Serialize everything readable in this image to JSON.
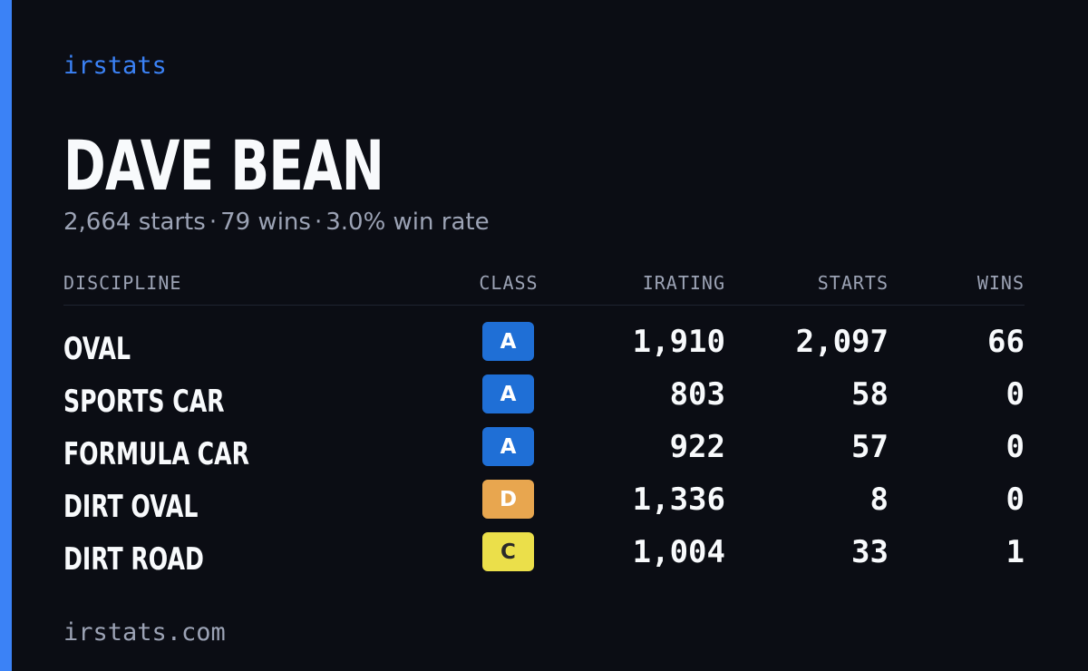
{
  "brand": "irstats",
  "driver": {
    "name": "DAVE BEAN",
    "starts_text": "2,664 starts",
    "wins_text": "79 wins",
    "win_rate_text": "3.0% win rate",
    "separator": "·"
  },
  "table": {
    "headers": {
      "discipline": "DISCIPLINE",
      "class": "CLASS",
      "irating": "IRATING",
      "starts": "STARTS",
      "wins": "WINS"
    },
    "rows": [
      {
        "discipline": "OVAL",
        "class": "A",
        "class_color": "#1f6fd6",
        "class_text_color": "#ffffff",
        "irating": "1,910",
        "starts": "2,097",
        "wins": "66"
      },
      {
        "discipline": "SPORTS CAR",
        "class": "A",
        "class_color": "#1f6fd6",
        "class_text_color": "#ffffff",
        "irating": "803",
        "starts": "58",
        "wins": "0"
      },
      {
        "discipline": "FORMULA CAR",
        "class": "A",
        "class_color": "#1f6fd6",
        "class_text_color": "#ffffff",
        "irating": "922",
        "starts": "57",
        "wins": "0"
      },
      {
        "discipline": "DIRT OVAL",
        "class": "D",
        "class_color": "#e8a64f",
        "class_text_color": "#ffffff",
        "irating": "1,336",
        "starts": "8",
        "wins": "0"
      },
      {
        "discipline": "DIRT ROAD",
        "class": "C",
        "class_color": "#ebdf4a",
        "class_text_color": "#2a2a2a",
        "irating": "1,004",
        "starts": "33",
        "wins": "1"
      }
    ]
  },
  "footer": "irstats.com",
  "colors": {
    "background": "#0b0d14",
    "accent": "#3b82f6",
    "muted_text": "#9ca3b5",
    "primary_text": "#f8fafc"
  }
}
